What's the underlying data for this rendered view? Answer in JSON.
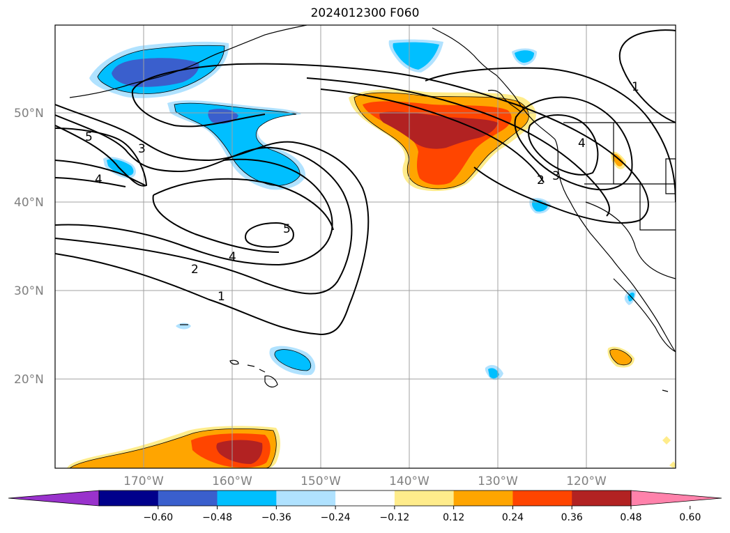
{
  "title": "2024012300 F060",
  "map": {
    "lat_labels": [
      "50°N",
      "40°N",
      "30°N",
      "20°N"
    ],
    "lon_labels": [
      "170°W",
      "160°W",
      "150°W",
      "140°W",
      "130°W",
      "120°W"
    ],
    "contour_labels": [
      "5",
      "3",
      "4",
      "5",
      "4",
      "2",
      "1",
      "4",
      "3",
      "2",
      "1"
    ],
    "contour_color": "#000000",
    "grid_color": "#a0a0a0"
  },
  "colorbar": {
    "ticks": [
      "−0.60",
      "−0.48",
      "−0.36",
      "−0.24",
      "−0.12",
      "0.12",
      "0.24",
      "0.36",
      "0.48",
      "0.60"
    ],
    "colors": [
      "#9932cc",
      "#00008b",
      "#3a5fcd",
      "#00bfff",
      "#b0e2ff",
      "#ffffff",
      "#ffec8b",
      "#ffa500",
      "#ff4500",
      "#b22222",
      "#ff82ab"
    ]
  }
}
